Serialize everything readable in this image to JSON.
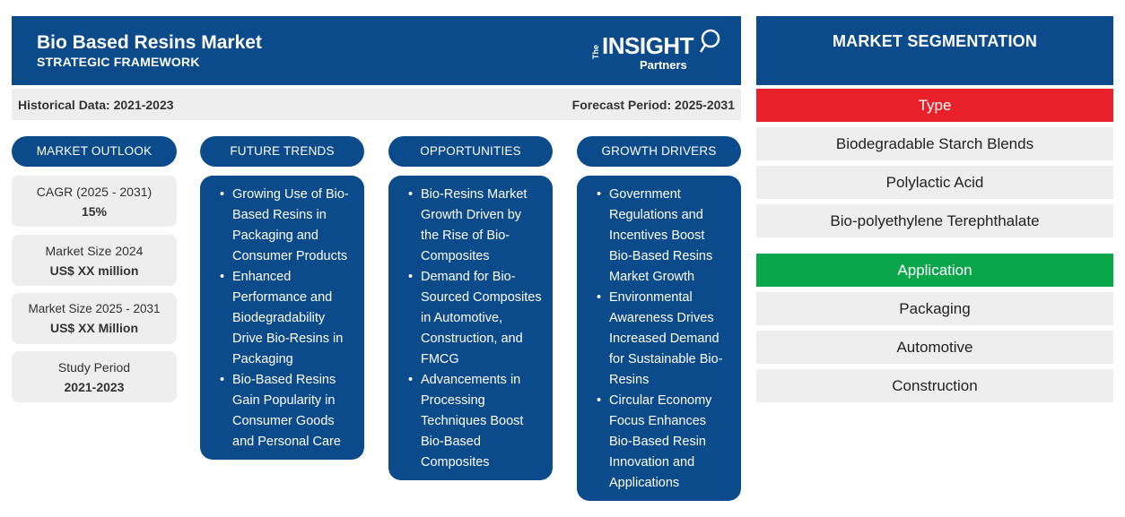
{
  "header": {
    "title": "Bio Based Resins Market",
    "subtitle": "STRATEGIC FRAMEWORK",
    "logo": {
      "the": "The",
      "insight": "INSIGHT",
      "partners": "Partners"
    }
  },
  "infobar": {
    "historical": "Historical Data: 2021-2023",
    "forecast": "Forecast Period: 2025-2031"
  },
  "columns": {
    "outlook": "MARKET OUTLOOK",
    "trends": "FUTURE TRENDS",
    "opportunities": "OPPORTUNITIES",
    "drivers": "GROWTH DRIVERS"
  },
  "outlook": [
    {
      "label": "CAGR (2025 - 2031)",
      "value": "15%"
    },
    {
      "label": "Market Size 2024",
      "value": "US$ XX million"
    },
    {
      "label": "Market Size 2025 - 2031",
      "value": "US$ XX Million"
    },
    {
      "label": "Study Period",
      "value": "2021-2023"
    }
  ],
  "trends": [
    "Growing Use of Bio-Based Resins in Packaging and Consumer Products",
    "Enhanced Performance and Biodegradability Drive Bio-Resins in Packaging",
    "Bio-Based Resins Gain Popularity in Consumer Goods and Personal Care"
  ],
  "opportunities": [
    "Bio-Resins Market Growth Driven by the Rise of Bio-Composites",
    "Demand for Bio-Sourced Composites in Automotive, Construction, and FMCG",
    "Advancements in Processing Techniques Boost Bio-Based Composites"
  ],
  "drivers": [
    "Government Regulations and Incentives Boost Bio-Based Resins Market Growth",
    "Environmental Awareness Drives Increased Demand for Sustainable Bio-Resins",
    "Circular Economy Focus Enhances Bio-Based Resin Innovation and Applications"
  ],
  "segmentation": {
    "title": "MARKET SEGMENTATION",
    "type": {
      "label": "Type",
      "color": "#e8202a",
      "items": [
        "Biodegradable Starch Blends",
        "Polylactic Acid",
        "Bio-polyethylene Terephthalate"
      ]
    },
    "application": {
      "label": "Application",
      "color": "#0aa64a",
      "items": [
        "Packaging",
        "Automotive",
        "Construction"
      ]
    }
  },
  "colors": {
    "primary": "#0b4a8b",
    "panel": "#eeeeee"
  }
}
